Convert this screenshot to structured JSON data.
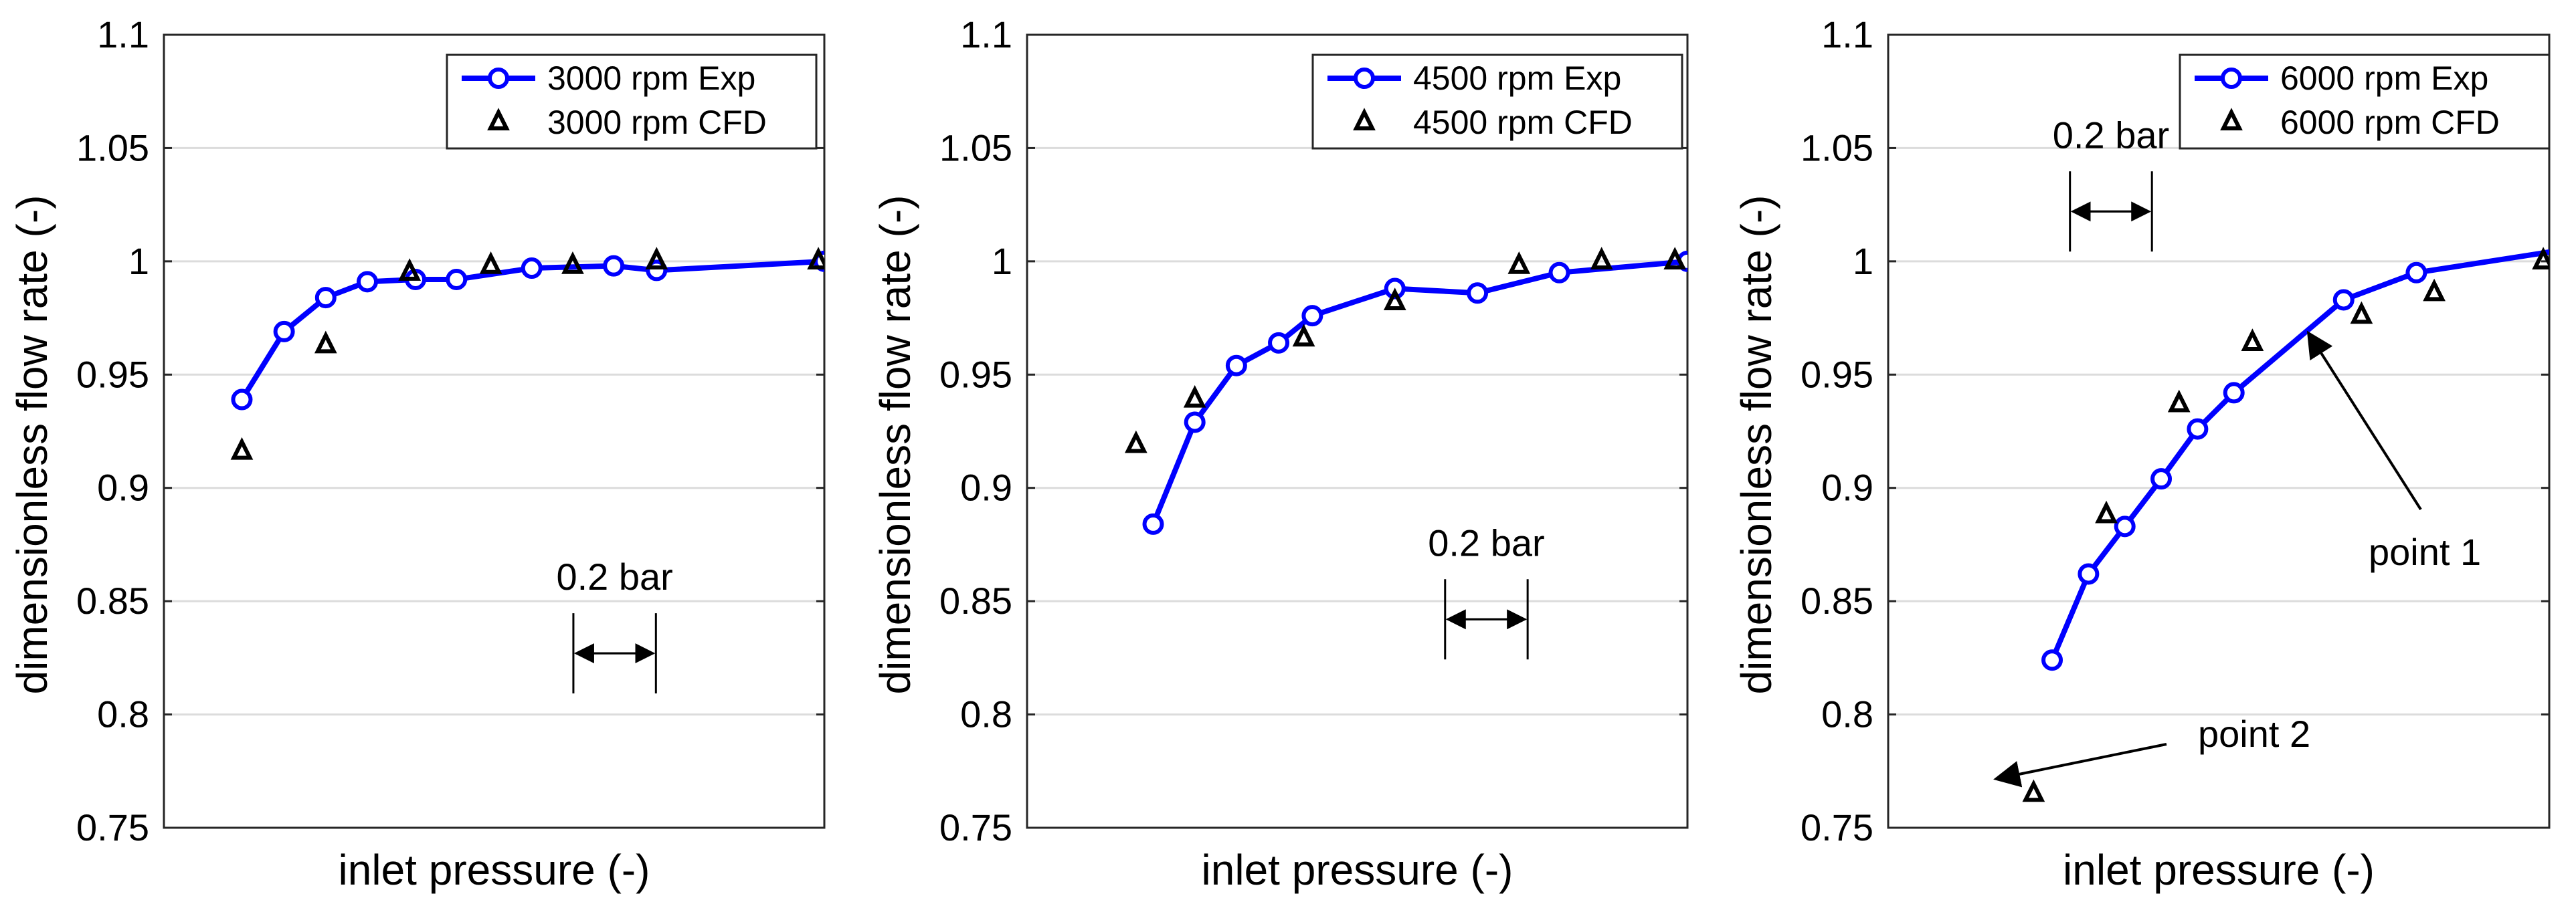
{
  "figure": {
    "description_note": ""
  },
  "chart_data": [
    {
      "type": "line",
      "xlabel": "inlet pressure (-)",
      "ylabel": "dimensionless flow rate (-)",
      "ylim": [
        0.75,
        1.1
      ],
      "yticks": [
        "0.75",
        "0.8",
        "0.85",
        "0.9",
        "0.95",
        "1",
        "1.05",
        "1.1"
      ],
      "xlim": [
        0,
        1
      ],
      "grid": "horizontal",
      "legend": "top-right",
      "series": [
        {
          "name": "3000 rpm Exp",
          "style": "line-circle",
          "color": "#0000ff",
          "x": [
            0.118,
            0.182,
            0.245,
            0.308,
            0.381,
            0.443,
            0.557,
            0.681,
            0.746,
            1.0
          ],
          "y": [
            0.939,
            0.969,
            0.984,
            0.991,
            0.992,
            0.992,
            0.997,
            0.998,
            0.996,
            1.0
          ]
        },
        {
          "name": "3000 rpm CFD",
          "style": "triangle",
          "color": "#000000",
          "x": [
            0.118,
            0.245,
            0.372,
            0.495,
            0.619,
            0.746,
            0.991
          ],
          "y": [
            0.916,
            0.963,
            0.995,
            0.998,
            0.998,
            1.0,
            1.0
          ]
        }
      ],
      "annotations": [
        {
          "text": "0.2 bar",
          "kind": "scale-bar",
          "x_from": 0.62,
          "x_to": 0.745,
          "y": 0.827
        }
      ]
    },
    {
      "type": "line",
      "xlabel": "inlet pressure (-)",
      "ylabel": "dimensionless flow rate (-)",
      "ylim": [
        0.75,
        1.1
      ],
      "yticks": [
        "0.75",
        "0.8",
        "0.85",
        "0.9",
        "0.95",
        "1",
        "1.05",
        "1.1"
      ],
      "xlim": [
        0,
        1
      ],
      "grid": "horizontal",
      "legend": "top-right",
      "series": [
        {
          "name": "4500 rpm Exp",
          "style": "line-circle",
          "color": "#0000ff",
          "x": [
            0.191,
            0.254,
            0.317,
            0.381,
            0.432,
            0.557,
            0.682,
            0.806,
            1.0
          ],
          "y": [
            0.884,
            0.929,
            0.954,
            0.964,
            0.976,
            0.988,
            0.986,
            0.995,
            1.0
          ]
        },
        {
          "name": "4500 rpm CFD",
          "style": "triangle",
          "color": "#000000",
          "x": [
            0.165,
            0.254,
            0.419,
            0.557,
            0.745,
            0.87,
            0.981
          ],
          "y": [
            0.919,
            0.939,
            0.966,
            0.982,
            0.998,
            1.0,
            1.0
          ]
        }
      ],
      "annotations": [
        {
          "text": "0.2 bar",
          "kind": "scale-bar",
          "x_from": 0.633,
          "x_to": 0.758,
          "y": 0.842
        }
      ]
    },
    {
      "type": "line",
      "xlabel": "inlet pressure (-)",
      "ylabel": "dimensionless flow rate (-)",
      "ylim": [
        0.75,
        1.1
      ],
      "yticks": [
        "0.75",
        "0.8",
        "0.85",
        "0.9",
        "0.95",
        "1",
        "1.05",
        "1.1"
      ],
      "xlim": [
        0,
        1
      ],
      "grid": "horizontal",
      "legend": "top-right",
      "series": [
        {
          "name": "6000 rpm Exp",
          "style": "line-circle",
          "color": "#0000ff",
          "x": [
            0.248,
            0.303,
            0.358,
            0.413,
            0.468,
            0.523,
            0.689,
            0.799,
            1.02
          ],
          "y": [
            0.824,
            0.862,
            0.883,
            0.904,
            0.926,
            0.942,
            0.983,
            0.995,
            1.005
          ]
        },
        {
          "name": "6000 rpm CFD",
          "style": "triangle",
          "color": "#000000",
          "x": [
            0.22,
            0.33,
            0.44,
            0.551,
            0.716,
            0.826,
            0.991
          ],
          "y": [
            0.765,
            0.888,
            0.937,
            0.964,
            0.976,
            0.986,
            1.0
          ]
        }
      ],
      "annotations": [
        {
          "text": "0.2 bar",
          "kind": "scale-bar",
          "x_from": 0.275,
          "x_to": 0.399,
          "y": 1.022
        },
        {
          "text": "point 1",
          "kind": "arrow-label"
        },
        {
          "text": "point 2",
          "kind": "arrow-label"
        }
      ]
    }
  ]
}
